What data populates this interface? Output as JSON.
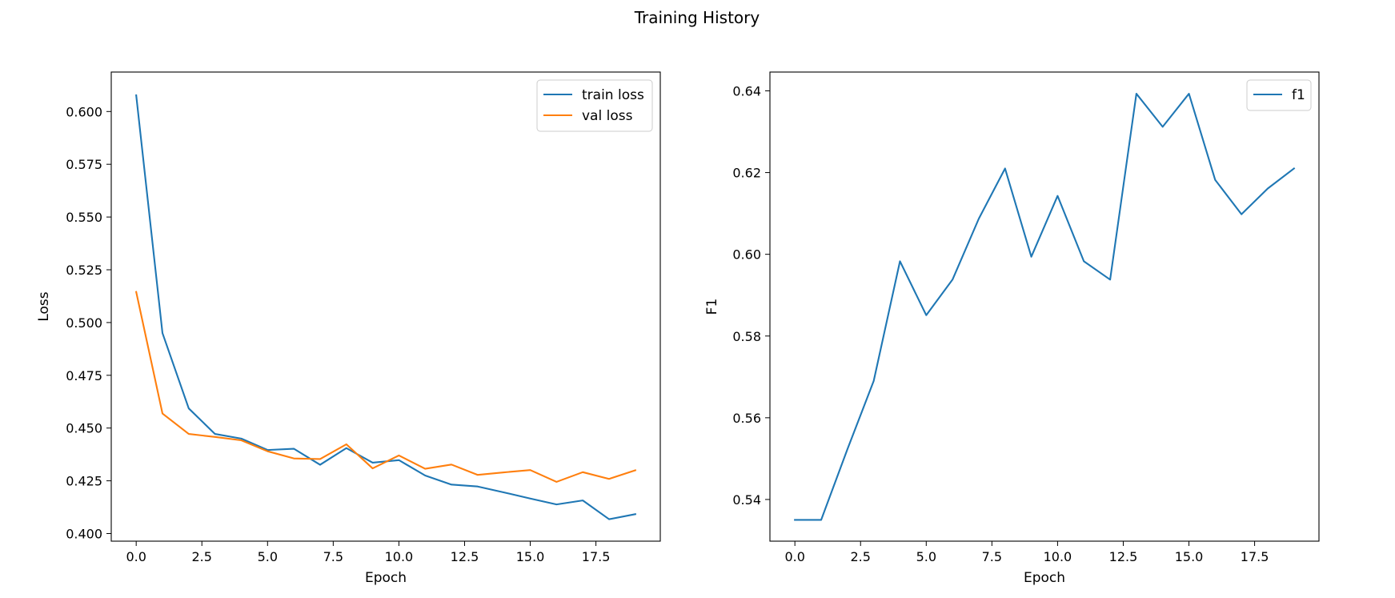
{
  "figure": {
    "title": "Training History"
  },
  "chart_data": [
    {
      "type": "line",
      "xlabel": "Epoch",
      "ylabel": "Loss",
      "x": [
        0,
        1,
        2,
        3,
        4,
        5,
        6,
        7,
        8,
        9,
        10,
        11,
        12,
        13,
        14,
        15,
        16,
        17,
        18,
        19
      ],
      "xlim": [
        -0.95,
        19.95
      ],
      "ylim": [
        0.3964,
        0.6187
      ],
      "xticks": [
        0.0,
        2.5,
        5.0,
        7.5,
        10.0,
        12.5,
        15.0,
        17.5
      ],
      "xtick_labels": [
        "0.0",
        "2.5",
        "5.0",
        "7.5",
        "10.0",
        "12.5",
        "15.0",
        "17.5"
      ],
      "yticks": [
        0.4,
        0.425,
        0.45,
        0.475,
        0.5,
        0.525,
        0.55,
        0.575,
        0.6
      ],
      "ytick_labels": [
        "0.400",
        "0.425",
        "0.450",
        "0.475",
        "0.500",
        "0.525",
        "0.550",
        "0.575",
        "0.600"
      ],
      "grid": false,
      "legend_position": "top-right",
      "series": [
        {
          "name": "train loss",
          "color": "#1f77b4",
          "values": [
            0.6077,
            0.495,
            0.4593,
            0.4472,
            0.445,
            0.4396,
            0.4402,
            0.4326,
            0.4405,
            0.4336,
            0.4348,
            0.4275,
            0.4232,
            0.4223,
            0.4195,
            0.4166,
            0.4138,
            0.4157,
            0.4068,
            0.4092
          ]
        },
        {
          "name": "val loss",
          "color": "#ff7f0e",
          "values": [
            0.5145,
            0.4569,
            0.4472,
            0.4458,
            0.4442,
            0.439,
            0.4356,
            0.4353,
            0.4423,
            0.4309,
            0.437,
            0.4307,
            0.4327,
            0.4278,
            0.429,
            0.4301,
            0.4245,
            0.4291,
            0.4259,
            0.43
          ]
        }
      ]
    },
    {
      "type": "line",
      "xlabel": "Epoch",
      "ylabel": "F1",
      "x": [
        0,
        1,
        2,
        3,
        4,
        5,
        6,
        7,
        8,
        9,
        10,
        11,
        12,
        13,
        14,
        15,
        16,
        17,
        18,
        19
      ],
      "xlim": [
        -0.95,
        19.95
      ],
      "ylim": [
        0.5298,
        0.6446
      ],
      "xticks": [
        0.0,
        2.5,
        5.0,
        7.5,
        10.0,
        12.5,
        15.0,
        17.5
      ],
      "xtick_labels": [
        "0.0",
        "2.5",
        "5.0",
        "7.5",
        "10.0",
        "12.5",
        "15.0",
        "17.5"
      ],
      "yticks": [
        0.54,
        0.56,
        0.58,
        0.6,
        0.62,
        0.64
      ],
      "ytick_labels": [
        "0.54",
        "0.56",
        "0.58",
        "0.60",
        "0.62",
        "0.64"
      ],
      "grid": false,
      "legend_position": "top-right",
      "series": [
        {
          "name": "f1",
          "color": "#1f77b4",
          "values": [
            0.535,
            0.535,
            0.5523,
            0.569,
            0.5983,
            0.5851,
            0.5938,
            0.6087,
            0.621,
            0.5994,
            0.6143,
            0.5983,
            0.5938,
            0.6393,
            0.6312,
            0.6393,
            0.6182,
            0.6098,
            0.6161,
            0.621
          ]
        }
      ]
    }
  ]
}
